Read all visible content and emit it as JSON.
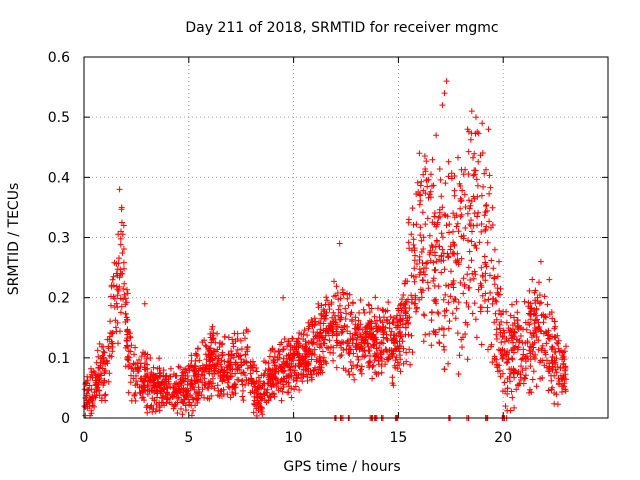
{
  "chart_data": {
    "type": "scatter",
    "title": "Day 211 of 2018, SRMTID for receiver mgmc",
    "xlabel": "GPS time / hours",
    "ylabel": "SRMTID / TECUs",
    "xlim": [
      0,
      25
    ],
    "ylim": [
      0,
      0.6
    ],
    "xticks": [
      0,
      5,
      10,
      15,
      20
    ],
    "yticks": [
      0,
      0.1,
      0.2,
      0.3,
      0.4,
      0.5,
      0.6
    ],
    "xtick_labels": [
      "0",
      "5",
      "10",
      "15",
      "20"
    ],
    "ytick_labels": [
      "0",
      "0.1",
      "0.2",
      "0.3",
      "0.4",
      "0.5",
      "0.6"
    ],
    "grid": true,
    "marker": "plus",
    "color": "#ff0000",
    "series": [
      {
        "name": "SRMTID",
        "envelope": [
          {
            "x": 0.0,
            "center": 0.04,
            "spread": 0.04
          },
          {
            "x": 0.5,
            "center": 0.05,
            "spread": 0.05
          },
          {
            "x": 1.0,
            "center": 0.08,
            "spread": 0.07
          },
          {
            "x": 1.5,
            "center": 0.18,
            "spread": 0.09
          },
          {
            "x": 1.8,
            "center": 0.26,
            "spread": 0.11
          },
          {
            "x": 2.2,
            "center": 0.08,
            "spread": 0.06
          },
          {
            "x": 3.0,
            "center": 0.06,
            "spread": 0.05
          },
          {
            "x": 4.0,
            "center": 0.05,
            "spread": 0.04
          },
          {
            "x": 5.0,
            "center": 0.05,
            "spread": 0.05
          },
          {
            "x": 6.0,
            "center": 0.09,
            "spread": 0.06
          },
          {
            "x": 7.0,
            "center": 0.08,
            "spread": 0.06
          },
          {
            "x": 7.8,
            "center": 0.09,
            "spread": 0.07
          },
          {
            "x": 8.3,
            "center": 0.04,
            "spread": 0.04
          },
          {
            "x": 9.0,
            "center": 0.07,
            "spread": 0.05
          },
          {
            "x": 10.0,
            "center": 0.09,
            "spread": 0.05
          },
          {
            "x": 11.0,
            "center": 0.12,
            "spread": 0.06
          },
          {
            "x": 12.0,
            "center": 0.16,
            "spread": 0.08
          },
          {
            "x": 13.0,
            "center": 0.13,
            "spread": 0.07
          },
          {
            "x": 14.0,
            "center": 0.13,
            "spread": 0.07
          },
          {
            "x": 15.0,
            "center": 0.12,
            "spread": 0.07
          },
          {
            "x": 15.8,
            "center": 0.25,
            "spread": 0.15
          },
          {
            "x": 16.6,
            "center": 0.3,
            "spread": 0.2
          },
          {
            "x": 17.2,
            "center": 0.25,
            "spread": 0.18
          },
          {
            "x": 18.0,
            "center": 0.28,
            "spread": 0.2
          },
          {
            "x": 18.7,
            "center": 0.3,
            "spread": 0.2
          },
          {
            "x": 19.3,
            "center": 0.27,
            "spread": 0.2
          },
          {
            "x": 20.0,
            "center": 0.1,
            "spread": 0.09
          },
          {
            "x": 21.0,
            "center": 0.12,
            "spread": 0.09
          },
          {
            "x": 21.8,
            "center": 0.15,
            "spread": 0.1
          },
          {
            "x": 22.5,
            "center": 0.09,
            "spread": 0.07
          },
          {
            "x": 23.0,
            "center": 0.07,
            "spread": 0.05
          }
        ],
        "point_count": 2400,
        "peaks": [
          {
            "x": 1.7,
            "y": 0.38
          },
          {
            "x": 1.8,
            "y": 0.35
          },
          {
            "x": 1.9,
            "y": 0.32
          },
          {
            "x": 2.9,
            "y": 0.19
          },
          {
            "x": 9.5,
            "y": 0.2
          },
          {
            "x": 12.2,
            "y": 0.29
          },
          {
            "x": 16.0,
            "y": 0.44
          },
          {
            "x": 16.3,
            "y": 0.41
          },
          {
            "x": 16.8,
            "y": 0.47
          },
          {
            "x": 17.2,
            "y": 0.54
          },
          {
            "x": 17.3,
            "y": 0.56
          },
          {
            "x": 17.1,
            "y": 0.52
          },
          {
            "x": 18.5,
            "y": 0.51
          },
          {
            "x": 18.7,
            "y": 0.5
          },
          {
            "x": 18.3,
            "y": 0.48
          },
          {
            "x": 19.0,
            "y": 0.49
          },
          {
            "x": 19.3,
            "y": 0.48
          },
          {
            "x": 15.5,
            "y": 0.33
          },
          {
            "x": 21.8,
            "y": 0.26
          },
          {
            "x": 22.2,
            "y": 0.23
          },
          {
            "x": 19.8,
            "y": 0.26
          }
        ],
        "zero_clusters": [
          12.0,
          12.3,
          12.6,
          13.7,
          13.9,
          14.2,
          14.9,
          17.4,
          18.3,
          19.2,
          20.0,
          20.1
        ]
      }
    ]
  }
}
